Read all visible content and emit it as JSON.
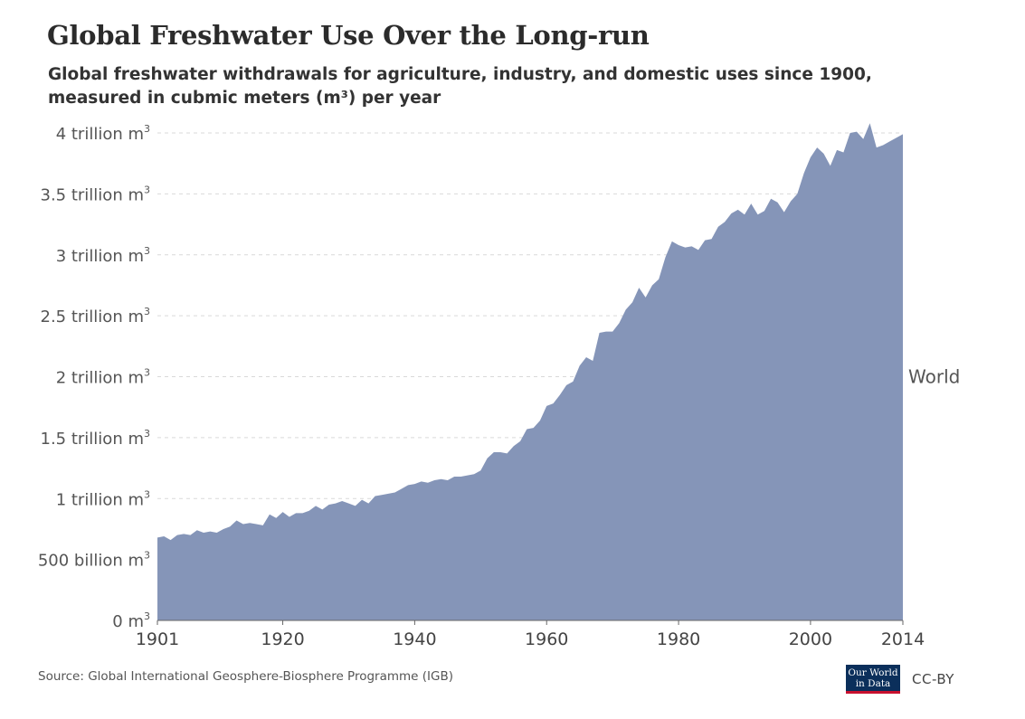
{
  "title": "Global Freshwater Use Over the Long-run",
  "subtitle": "Global freshwater withdrawals for agriculture, industry, and domestic uses since 1900, measured in cubmic meters (m³) per year",
  "source": "Source: Global International Geosphere-Biosphere Programme (IGB)",
  "logo_text": "Our World in Data",
  "license": "CC-BY",
  "colors": {
    "area": "#8595b8",
    "grid": "#d9d9d9",
    "axis": "#666666"
  },
  "chart_data": {
    "type": "area",
    "title": "Global Freshwater Use Over the Long-run",
    "xlabel": "",
    "ylabel": "",
    "xlim": [
      1901,
      2014
    ],
    "ylim": [
      0,
      4
    ],
    "y_unit": "trillion m³",
    "grid": "horizontal dashed",
    "legend": "inline label at right end",
    "y_ticks": [
      {
        "value": 0,
        "label": "0 m",
        "sup": "3"
      },
      {
        "value": 0.5,
        "label": "500 billion m",
        "sup": "3"
      },
      {
        "value": 1,
        "label": "1 trillion m",
        "sup": "3"
      },
      {
        "value": 1.5,
        "label": "1.5 trillion m",
        "sup": "3"
      },
      {
        "value": 2,
        "label": "2 trillion m",
        "sup": "3"
      },
      {
        "value": 2.5,
        "label": "2.5 trillion m",
        "sup": "3"
      },
      {
        "value": 3,
        "label": "3 trillion m",
        "sup": "3"
      },
      {
        "value": 3.5,
        "label": "3.5 trillion m",
        "sup": "3"
      },
      {
        "value": 4,
        "label": "4 trillion m",
        "sup": "3"
      }
    ],
    "x_ticks": [
      {
        "value": 1901,
        "label": "1901"
      },
      {
        "value": 1920,
        "label": "1920"
      },
      {
        "value": 1940,
        "label": "1940"
      },
      {
        "value": 1960,
        "label": "1960"
      },
      {
        "value": 1980,
        "label": "1980"
      },
      {
        "value": 2000,
        "label": "2000"
      },
      {
        "value": 2014,
        "label": "2014"
      }
    ],
    "series": [
      {
        "name": "World",
        "points": [
          [
            1901,
            0.68
          ],
          [
            1902,
            0.69
          ],
          [
            1903,
            0.66
          ],
          [
            1904,
            0.7
          ],
          [
            1905,
            0.71
          ],
          [
            1906,
            0.7
          ],
          [
            1907,
            0.74
          ],
          [
            1908,
            0.72
          ],
          [
            1909,
            0.73
          ],
          [
            1910,
            0.72
          ],
          [
            1911,
            0.75
          ],
          [
            1912,
            0.77
          ],
          [
            1913,
            0.82
          ],
          [
            1914,
            0.79
          ],
          [
            1915,
            0.8
          ],
          [
            1916,
            0.79
          ],
          [
            1917,
            0.78
          ],
          [
            1918,
            0.87
          ],
          [
            1919,
            0.84
          ],
          [
            1920,
            0.89
          ],
          [
            1921,
            0.85
          ],
          [
            1922,
            0.88
          ],
          [
            1923,
            0.88
          ],
          [
            1924,
            0.9
          ],
          [
            1925,
            0.94
          ],
          [
            1926,
            0.91
          ],
          [
            1927,
            0.95
          ],
          [
            1928,
            0.96
          ],
          [
            1929,
            0.98
          ],
          [
            1930,
            0.96
          ],
          [
            1931,
            0.94
          ],
          [
            1932,
            0.99
          ],
          [
            1933,
            0.96
          ],
          [
            1934,
            1.02
          ],
          [
            1935,
            1.03
          ],
          [
            1936,
            1.04
          ],
          [
            1937,
            1.05
          ],
          [
            1938,
            1.08
          ],
          [
            1939,
            1.11
          ],
          [
            1940,
            1.12
          ],
          [
            1941,
            1.14
          ],
          [
            1942,
            1.13
          ],
          [
            1943,
            1.15
          ],
          [
            1944,
            1.16
          ],
          [
            1945,
            1.15
          ],
          [
            1946,
            1.18
          ],
          [
            1947,
            1.18
          ],
          [
            1948,
            1.19
          ],
          [
            1949,
            1.2
          ],
          [
            1950,
            1.23
          ],
          [
            1951,
            1.33
          ],
          [
            1952,
            1.38
          ],
          [
            1953,
            1.38
          ],
          [
            1954,
            1.37
          ],
          [
            1955,
            1.43
          ],
          [
            1956,
            1.47
          ],
          [
            1957,
            1.57
          ],
          [
            1958,
            1.58
          ],
          [
            1959,
            1.64
          ],
          [
            1960,
            1.76
          ],
          [
            1961,
            1.78
          ],
          [
            1962,
            1.85
          ],
          [
            1963,
            1.93
          ],
          [
            1964,
            1.96
          ],
          [
            1965,
            2.09
          ],
          [
            1966,
            2.16
          ],
          [
            1967,
            2.13
          ],
          [
            1968,
            2.36
          ],
          [
            1969,
            2.37
          ],
          [
            1970,
            2.37
          ],
          [
            1971,
            2.44
          ],
          [
            1972,
            2.55
          ],
          [
            1973,
            2.61
          ],
          [
            1974,
            2.73
          ],
          [
            1975,
            2.65
          ],
          [
            1976,
            2.75
          ],
          [
            1977,
            2.8
          ],
          [
            1978,
            2.98
          ],
          [
            1979,
            3.11
          ],
          [
            1980,
            3.08
          ],
          [
            1981,
            3.06
          ],
          [
            1982,
            3.07
          ],
          [
            1983,
            3.04
          ],
          [
            1984,
            3.12
          ],
          [
            1985,
            3.13
          ],
          [
            1986,
            3.23
          ],
          [
            1987,
            3.27
          ],
          [
            1988,
            3.34
          ],
          [
            1989,
            3.37
          ],
          [
            1990,
            3.33
          ],
          [
            1991,
            3.42
          ],
          [
            1992,
            3.33
          ],
          [
            1993,
            3.36
          ],
          [
            1994,
            3.46
          ],
          [
            1995,
            3.43
          ],
          [
            1996,
            3.35
          ],
          [
            1997,
            3.44
          ],
          [
            1998,
            3.5
          ],
          [
            1999,
            3.67
          ],
          [
            2000,
            3.8
          ],
          [
            2001,
            3.88
          ],
          [
            2002,
            3.83
          ],
          [
            2003,
            3.73
          ],
          [
            2004,
            3.86
          ],
          [
            2005,
            3.84
          ],
          [
            2006,
            4.0
          ],
          [
            2007,
            4.01
          ],
          [
            2008,
            3.95
          ],
          [
            2009,
            4.08
          ],
          [
            2010,
            3.88
          ],
          [
            2011,
            3.9
          ],
          [
            2012,
            3.93
          ],
          [
            2013,
            3.96
          ],
          [
            2014,
            3.99
          ]
        ]
      }
    ]
  }
}
